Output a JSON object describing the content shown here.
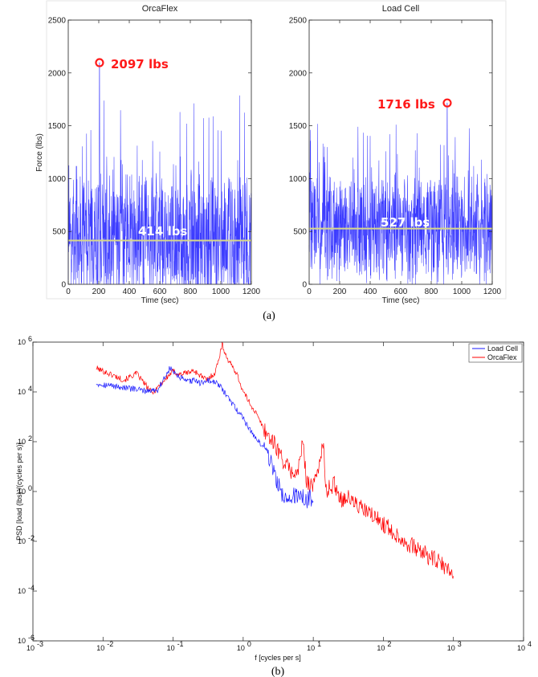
{
  "colors": {
    "series_blue": "#1a1aff",
    "series_red": "#ff0000",
    "mean_line": "#d8d889",
    "highlight": "#ff1a1a"
  },
  "chart_data": [
    {
      "id": "orcaflex_timeseries",
      "type": "line",
      "title": "OrcaFlex",
      "xlabel": "Time (sec)",
      "ylabel": "Force (lbs)",
      "xlim": [
        0,
        1200
      ],
      "ylim": [
        0,
        2500
      ],
      "xticks": [
        "0",
        "200",
        "400",
        "600",
        "800",
        "1000",
        "1200"
      ],
      "yticks": [
        "0",
        "500",
        "1000",
        "1500",
        "2000",
        "2500"
      ],
      "series": [
        {
          "mean": 414,
          "peak_x": 205,
          "peak_y": 2097
        }
      ],
      "mean_label": "414 lbs",
      "peak_label": "2097 lbs"
    },
    {
      "id": "loadcell_timeseries",
      "type": "line",
      "title": "Load Cell",
      "xlabel": "Time (sec)",
      "ylabel": "",
      "xlim": [
        0,
        1200
      ],
      "ylim": [
        0,
        2500
      ],
      "xticks": [
        "0",
        "200",
        "400",
        "600",
        "800",
        "1000",
        "1200"
      ],
      "yticks": [
        "0",
        "500",
        "1000",
        "1500",
        "2000",
        "2500"
      ],
      "series": [
        {
          "mean": 527,
          "peak_x": 905,
          "peak_y": 1716
        }
      ],
      "mean_label": "527 lbs",
      "peak_label": "1716 lbs"
    },
    {
      "id": "psd_comparison",
      "type": "line",
      "xscale": "log",
      "yscale": "log",
      "xlabel": "f [cycles per s]",
      "ylabel": "PSD [load (lbs)²/(cycles per s)]",
      "xlim": [
        0.001,
        10000
      ],
      "ylim": [
        1e-06,
        1000000
      ],
      "xtick_exponents": [
        -3,
        -2,
        -1,
        0,
        1,
        2,
        3,
        4
      ],
      "ytick_exponents": [
        -6,
        -4,
        -2,
        0,
        2,
        4,
        6
      ],
      "legend_position": "top-right",
      "series": [
        {
          "name": "Load Cell",
          "points": [
            [
              0.008,
              22000
            ],
            [
              0.04,
              11000
            ],
            [
              0.06,
              12000
            ],
            [
              0.08,
              50000
            ],
            [
              0.09,
              90000
            ],
            [
              0.12,
              40000
            ],
            [
              0.16,
              25000
            ],
            [
              0.2,
              30000
            ],
            [
              0.25,
              22000
            ],
            [
              0.3,
              30000
            ],
            [
              0.45,
              20000
            ],
            [
              0.6,
              6000
            ],
            [
              0.8,
              2000
            ],
            [
              1.0,
              900
            ],
            [
              1.3,
              250
            ],
            [
              1.6,
              110
            ],
            [
              2.0,
              60
            ],
            [
              2.5,
              15
            ],
            [
              3.0,
              3
            ],
            [
              3.5,
              0.8
            ],
            [
              4.0,
              0.5
            ],
            [
              5.0,
              0.7
            ],
            [
              6.0,
              0.55
            ],
            [
              7.0,
              0.7
            ],
            [
              8.0,
              0.45
            ],
            [
              9.0,
              0.6
            ],
            [
              10,
              0.4
            ]
          ]
        },
        {
          "name": "OrcaFlex",
          "points": [
            [
              0.008,
              90000
            ],
            [
              0.02,
              30000
            ],
            [
              0.03,
              55000
            ],
            [
              0.05,
              9000
            ],
            [
              0.08,
              35000
            ],
            [
              0.1,
              70000
            ],
            [
              0.12,
              50000
            ],
            [
              0.2,
              70000
            ],
            [
              0.3,
              30000
            ],
            [
              0.4,
              60000
            ],
            [
              0.5,
              800000
            ],
            [
              0.6,
              200000
            ],
            [
              0.8,
              60000
            ],
            [
              1.0,
              10000
            ],
            [
              1.5,
              1500
            ],
            [
              2.0,
              300
            ],
            [
              3.0,
              60
            ],
            [
              4.0,
              12
            ],
            [
              5.0,
              6
            ],
            [
              6.0,
              5
            ],
            [
              7.0,
              100
            ],
            [
              8.0,
              3
            ],
            [
              10,
              1.5
            ],
            [
              14,
              80
            ],
            [
              15,
              1
            ],
            [
              20,
              2
            ],
            [
              25,
              0.5
            ],
            [
              30,
              0.6
            ],
            [
              50,
              0.2
            ],
            [
              80,
              0.08
            ],
            [
              100,
              0.05
            ],
            [
              200,
              0.01
            ],
            [
              400,
              0.003
            ],
            [
              600,
              0.0015
            ],
            [
              800,
              0.0008
            ],
            [
              1000,
              0.0004
            ]
          ]
        }
      ]
    }
  ],
  "captions": {
    "top": "(a)",
    "bottom": "(b)"
  }
}
